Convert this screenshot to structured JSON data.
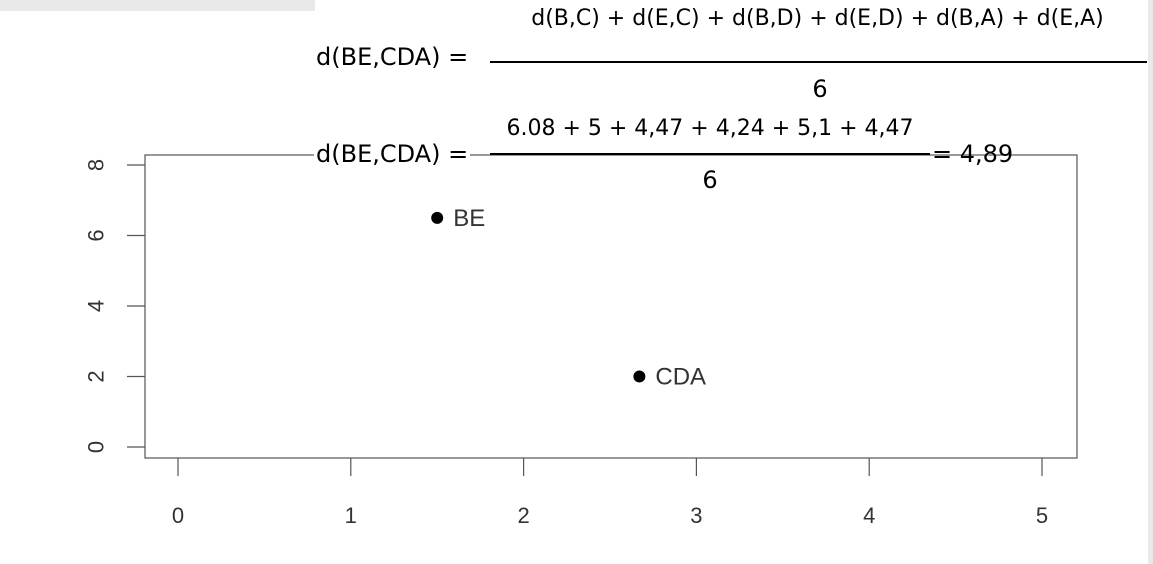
{
  "formula": {
    "line1_lhs": "d(BE,CDA) =",
    "line1_numerator": "d(B,C) + d(E,C) + d(B,D) + d(E,D) + d(B,A) + d(E,A)",
    "line1_denominator": "6",
    "line2_lhs": "d(BE,CDA) =",
    "line2_numerator": "6.08 + 5 + 4,47 + 4,24 + 5,1 + 4,47",
    "line2_denominator": "6",
    "line2_result": "= 4,89"
  },
  "chart_data": {
    "type": "scatter",
    "title": "",
    "xlabel": "",
    "ylabel": "",
    "xlim": [
      0,
      5
    ],
    "ylim": [
      0,
      8
    ],
    "x_ticks": [
      0,
      1,
      2,
      3,
      4,
      5
    ],
    "y_ticks": [
      0,
      2,
      4,
      6,
      8
    ],
    "grid": false,
    "points": [
      {
        "label": "BE",
        "x": 1.5,
        "y": 6.5
      },
      {
        "label": "CDA",
        "x": 2.67,
        "y": 2.0
      }
    ]
  }
}
